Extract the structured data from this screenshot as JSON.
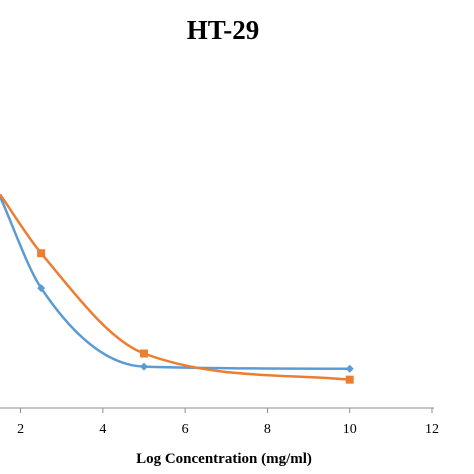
{
  "chart_data": {
    "type": "line",
    "title": "HT-29",
    "xlabel": "Log Concentration (mg/ml)",
    "ylabel": "",
    "xlim": [
      1.5,
      12
    ],
    "x_ticks": [
      2,
      4,
      6,
      8,
      10,
      12
    ],
    "x_tick_labels": [
      "2",
      "4",
      "6",
      "8",
      "10",
      "12"
    ],
    "ylim": [
      0,
      100
    ],
    "grid": false,
    "smooth": true,
    "series": [
      {
        "color": "#5B9BD5",
        "marker": "diamond",
        "x": [
          1.5,
          2.5,
          5,
          10
        ],
        "y": [
          97,
          55,
          19,
          18
        ]
      },
      {
        "color": "#ED7D31",
        "marker": "square",
        "x": [
          1.5,
          2.5,
          5,
          10
        ],
        "y": [
          98,
          71,
          25,
          13
        ]
      }
    ]
  }
}
